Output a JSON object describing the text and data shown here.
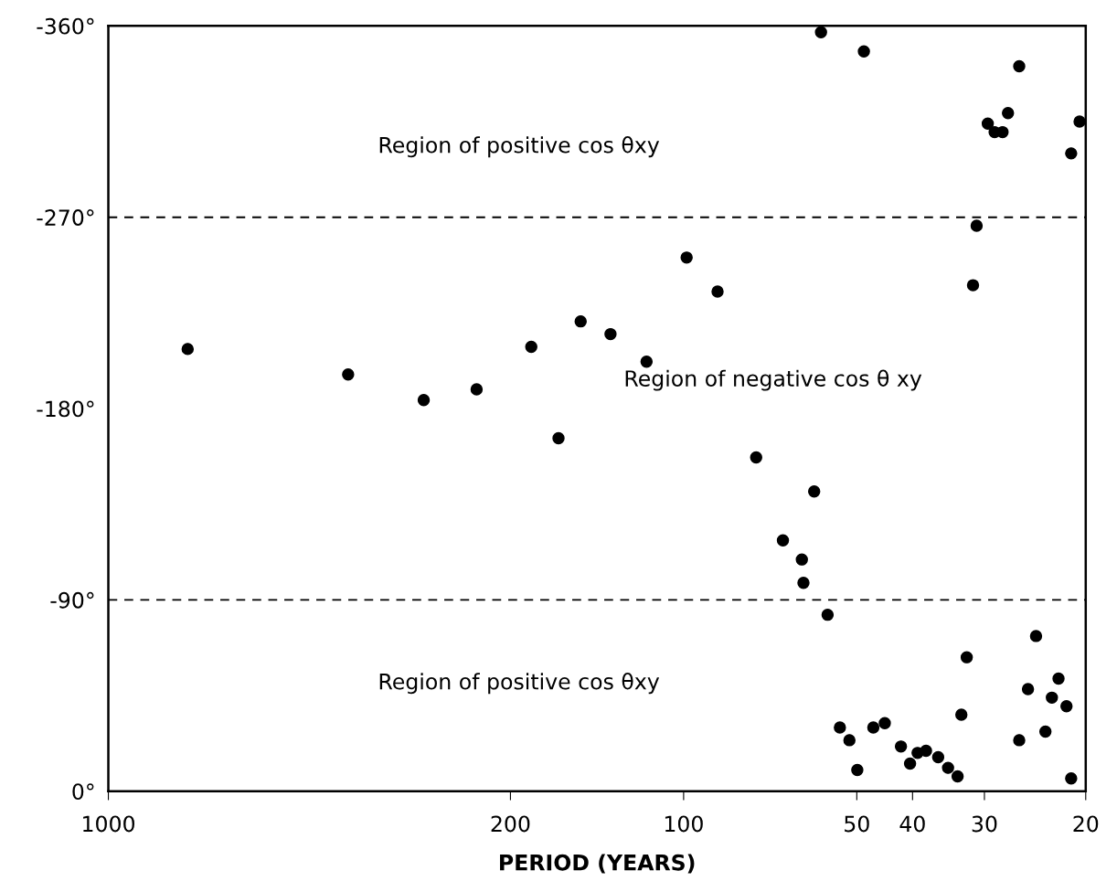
{
  "chart_data": {
    "type": "scatter",
    "xlabel": "PERIOD (YEARS)",
    "x": [
      728,
      383,
      283,
      229,
      184,
      165,
      151,
      134,
      116,
      98.8,
      87.3,
      74.8,
      67.2,
      62.3,
      61.9,
      59.3,
      57.7,
      56.2,
      53.5,
      51.5,
      49.9,
      48.6,
      46.8,
      44.7,
      41.9,
      40.4,
      39.2,
      37.9,
      36.1,
      34.7,
      33.4,
      32.9,
      32.2,
      31.4,
      30.95,
      29.6,
      28.8,
      27.9,
      27.3,
      26.1,
      26.1,
      25.2,
      24.4,
      23.5,
      22.9,
      22.3,
      21.6,
      21.2,
      21.2,
      20.5
    ],
    "log": "x",
    "series": [
      {
        "color": "#000000",
        "values": [
          -208,
          -196,
          -184,
          -189,
          -209,
          -166,
          -221,
          -215,
          -202,
          -251,
          -235,
          -157,
          -118,
          -109,
          -98,
          -141,
          -357,
          -83,
          -30,
          -24,
          -10,
          -348,
          -30,
          -32,
          -21,
          -13,
          -18,
          -19,
          -16,
          -11,
          -7,
          -36,
          -63,
          -238,
          -266,
          -314,
          -310,
          -310,
          -319,
          -341,
          -24,
          -48,
          -73,
          -28,
          -44,
          -53,
          -40,
          -300,
          -6,
          -315
        ]
      }
    ],
    "marker": "circle",
    "xlim": [
      1000,
      20
    ],
    "xticks": [
      1000,
      200,
      100,
      50,
      40,
      30,
      20
    ],
    "ylim": [
      0,
      -360
    ],
    "yticks": [
      {
        "value": 0,
        "label": "0°"
      },
      {
        "value": -90,
        "label": "-90°"
      },
      {
        "value": -180,
        "label": "-180°"
      },
      {
        "value": -270,
        "label": "-270°"
      },
      {
        "value": -360,
        "label": "-360°"
      }
    ],
    "ref_lines": [
      {
        "axis": "y",
        "value": -270,
        "color": "#000000",
        "line_style": "dashed"
      },
      {
        "axis": "y",
        "value": -90,
        "color": "#000000",
        "line_style": "dashed"
      }
    ],
    "annotations": [
      "Region of positive cos θxy",
      "Region of negative cos θ xy",
      "Region of positive cos θxy"
    ],
    "grid": false,
    "legend": false
  }
}
